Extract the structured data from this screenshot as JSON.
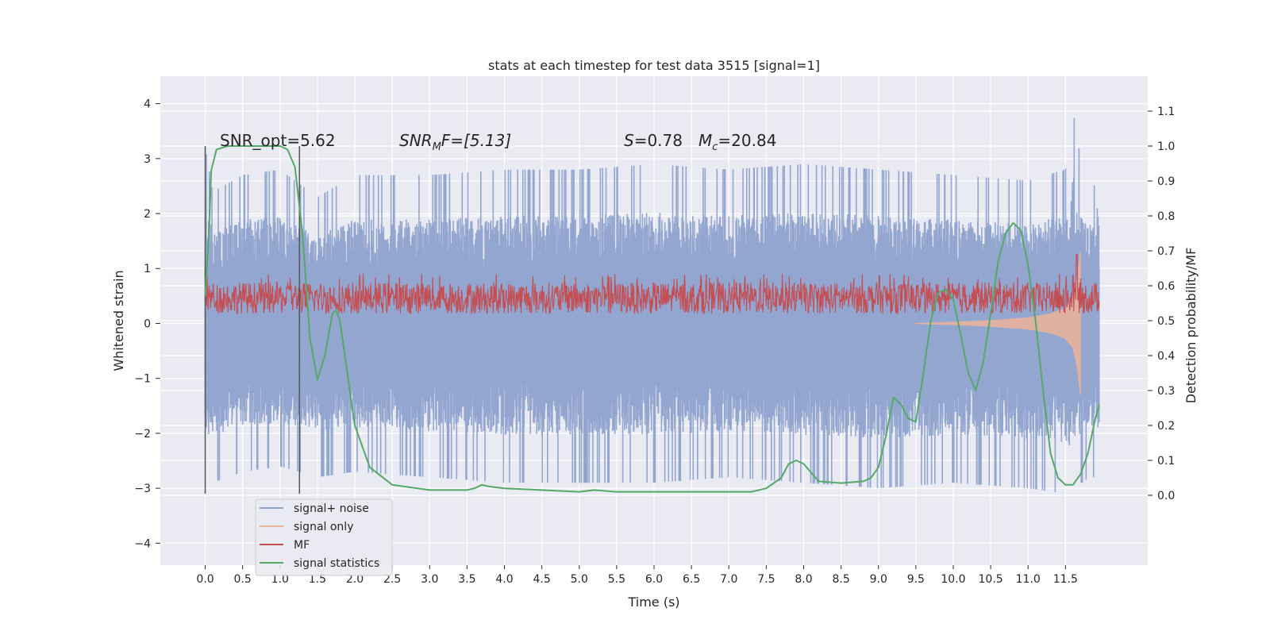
{
  "chart_data": {
    "type": "line",
    "title": "stats at each timestep for test data 3515 [signal=1]",
    "xlabel": "Time (s)",
    "ylabel": "Whitened strain",
    "y2label": "Detection probability/MF",
    "xlim": [
      -0.6,
      12.6
    ],
    "ylim": [
      -4.4,
      4.5
    ],
    "y2lim": [
      -0.2,
      1.2
    ],
    "xticks": [
      0.0,
      0.5,
      1.0,
      1.5,
      2.0,
      2.5,
      3.0,
      3.5,
      4.0,
      4.5,
      5.0,
      5.5,
      6.0,
      6.5,
      7.0,
      7.5,
      8.0,
      8.5,
      9.0,
      9.5,
      10.0,
      10.5,
      11.0,
      11.5
    ],
    "yticks": [
      4,
      3,
      2,
      1,
      0,
      -1,
      -2,
      -3,
      -4
    ],
    "ytick_labels": [
      "4",
      "3",
      "2",
      "1",
      "0",
      "−1",
      "−2",
      "−3",
      "−4"
    ],
    "y2ticks": [
      1.1,
      1.0,
      0.9,
      0.8,
      0.7,
      0.6,
      0.5,
      0.4,
      0.3,
      0.2,
      0.1,
      0.0
    ],
    "grid": true,
    "legend_position": "lower-left",
    "annotations": {
      "snr_opt": "SNR_opt=5.62",
      "snr_mf_prefix": "SNR",
      "snr_mf_sub": "M",
      "snr_mf_rest": "F=[5.13]",
      "s_sym": "S",
      "s_val": "=0.78",
      "mc_sym": "M",
      "mc_sub": "c",
      "mc_val": "=20.84"
    },
    "vlines": [
      0.0,
      1.26
    ],
    "series": [
      {
        "name": "signal+ noise",
        "color": "#8da2cd",
        "axis": "left",
        "envelope": {
          "t": [
            0.0,
            0.1,
            0.5,
            1.0,
            1.5,
            2.0,
            3.0,
            4.0,
            5.0,
            6.0,
            7.0,
            8.0,
            9.0,
            10.0,
            11.0,
            11.5,
            11.6,
            11.65,
            11.7,
            11.75,
            11.8,
            11.9,
            11.95
          ],
          "upper": [
            3.2,
            2.4,
            2.7,
            2.8,
            2.3,
            2.7,
            2.7,
            2.8,
            2.8,
            2.9,
            2.8,
            2.9,
            2.8,
            2.7,
            2.6,
            2.8,
            4.1,
            3.0,
            3.3,
            2.8,
            2.6,
            2.5,
            1.7
          ],
          "lower": [
            -3.1,
            -2.9,
            -2.7,
            -2.6,
            -2.8,
            -2.7,
            -2.8,
            -2.9,
            -2.9,
            -2.9,
            -2.8,
            -2.9,
            -3.0,
            -2.9,
            -3.0,
            -3.1,
            -3.3,
            -2.8,
            -2.9,
            -2.9,
            -2.8,
            -2.8,
            -3.2
          ]
        }
      },
      {
        "name": "signal only",
        "color": "#dd8452",
        "axis": "left",
        "points": {
          "t": [
            9.5,
            10.0,
            10.5,
            11.0,
            11.3,
            11.5,
            11.6,
            11.65,
            11.7
          ],
          "amp": [
            0.01,
            0.03,
            0.06,
            0.11,
            0.18,
            0.28,
            0.45,
            0.75,
            1.3
          ]
        }
      },
      {
        "name": "MF",
        "color": "#c44e52",
        "axis": "right",
        "band": {
          "t_start": 0.0,
          "t_end": 11.95,
          "base": 0.5,
          "mean": 0.565,
          "max_typical": 0.62,
          "spikes": [
            {
              "t": 11.65,
              "value": 0.69
            },
            {
              "t": 11.6,
              "value": 0.63
            }
          ]
        }
      },
      {
        "name": "signal statistics",
        "color": "#55a868",
        "axis": "right",
        "x": [
          0.0,
          0.05,
          0.08,
          0.15,
          0.3,
          0.5,
          0.9,
          1.0,
          1.1,
          1.2,
          1.3,
          1.4,
          1.5,
          1.6,
          1.7,
          1.75,
          1.8,
          1.9,
          2.0,
          2.2,
          2.5,
          3.0,
          3.5,
          3.6,
          3.7,
          3.8,
          4.0,
          4.5,
          5.0,
          5.2,
          5.5,
          6.0,
          6.5,
          6.7,
          7.0,
          7.3,
          7.5,
          7.7,
          7.8,
          7.9,
          8.0,
          8.2,
          8.5,
          8.8,
          8.9,
          9.0,
          9.1,
          9.2,
          9.3,
          9.4,
          9.5,
          9.6,
          9.7,
          9.8,
          9.9,
          10.0,
          10.1,
          10.2,
          10.3,
          10.4,
          10.5,
          10.6,
          10.7,
          10.8,
          10.9,
          11.0,
          11.1,
          11.2,
          11.3,
          11.4,
          11.5,
          11.6,
          11.7,
          11.8,
          11.9,
          11.95
        ],
        "y": [
          0.57,
          0.75,
          0.93,
          0.99,
          1.0,
          1.0,
          1.0,
          1.0,
          0.99,
          0.94,
          0.75,
          0.45,
          0.33,
          0.4,
          0.52,
          0.53,
          0.5,
          0.35,
          0.2,
          0.08,
          0.03,
          0.015,
          0.015,
          0.02,
          0.03,
          0.025,
          0.02,
          0.015,
          0.01,
          0.015,
          0.01,
          0.01,
          0.01,
          0.01,
          0.01,
          0.01,
          0.02,
          0.05,
          0.09,
          0.1,
          0.09,
          0.04,
          0.035,
          0.04,
          0.05,
          0.08,
          0.17,
          0.28,
          0.26,
          0.22,
          0.21,
          0.35,
          0.5,
          0.58,
          0.59,
          0.56,
          0.46,
          0.35,
          0.3,
          0.38,
          0.52,
          0.67,
          0.75,
          0.78,
          0.76,
          0.66,
          0.5,
          0.3,
          0.12,
          0.05,
          0.03,
          0.03,
          0.06,
          0.12,
          0.22,
          0.26
        ]
      }
    ]
  }
}
